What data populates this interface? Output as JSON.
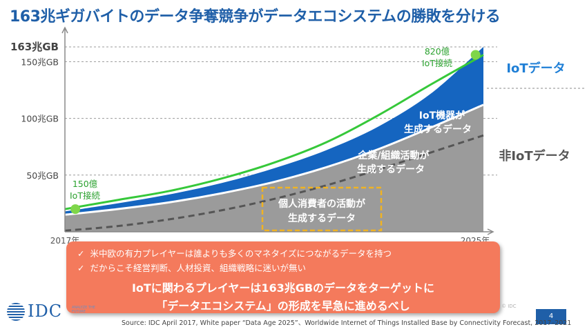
{
  "title": "163兆ギガバイトのデータ争奪競争がデータエコシステムの勝敗を分ける",
  "chart_data": {
    "type": "area",
    "x_start_label": "2017年",
    "x_end_label": "2025年",
    "x": [
      2017,
      2018,
      2019,
      2020,
      2021,
      2022,
      2023,
      2024,
      2025
    ],
    "xlim": [
      2017,
      2025
    ],
    "ylim": [
      0,
      163
    ],
    "y_ticks": [
      {
        "value": 163,
        "label": "163兆GB"
      },
      {
        "value": 150,
        "label": "150兆GB"
      },
      {
        "value": 100,
        "label": "100兆GB"
      },
      {
        "value": 50,
        "label": "50兆GB"
      }
    ],
    "series": [
      {
        "name": "非IoTデータ",
        "values": [
          15,
          20,
          26,
          34,
          44,
          57,
          73,
          92,
          112
        ]
      },
      {
        "name": "IoTデータ",
        "values": [
          18,
          25,
          33,
          43,
          56,
          72,
          93,
          122,
          163
        ]
      }
    ],
    "boundary_line": {
      "values": [
        1,
        5,
        11,
        19,
        29,
        41,
        55,
        70,
        85
      ]
    },
    "device_line": {
      "values": [
        20,
        28,
        36,
        47,
        61,
        79,
        103,
        130,
        156
      ]
    },
    "points": [
      {
        "x": 2017.2,
        "y": 20,
        "label_line1": "150億",
        "label_line2": "IoT接続"
      },
      {
        "x": 2024.85,
        "y": 156,
        "label_line1": "820億",
        "label_line2": "IoT接続"
      }
    ],
    "area_labels": {
      "iot_device_1": "IoT機器が",
      "iot_device_2": "生成するデータ",
      "enterprise_1": "企業/組織活動が",
      "enterprise_2": "生成するデータ",
      "consumer_1": "個人消費者の活動が",
      "consumer_2": "生成するデータ"
    },
    "legend_iot": "IoTデータ",
    "legend_non_iot": "非IoTデータ",
    "colors": {
      "non_iot": "#9b9b9b",
      "iot": "#1565c0",
      "device_line": "#36c83a",
      "dashed": "#555555",
      "highlight_box": "#f0b323",
      "legend_iot": "#1f7fd6",
      "legend_non_iot": "#555555"
    }
  },
  "callout": {
    "bullet_1": "米中欧の有力プレイヤーは誰よりも多くのマネタイズにつながるデータを持つ",
    "bullet_2": "だからこそ経営判断、人材投資、組織戦略に迷いが無い",
    "check_mark": "✓",
    "message_1": "IoTに関わるプレイヤーは163兆GBのデータをターゲットに",
    "message_2": "「データエコシステム」の形成を早急に進めるべし",
    "color": "#f47a5c"
  },
  "footer": {
    "logo_text": "IDC",
    "logo_tagline": "ANALYZE THE FUTURE",
    "small_mark": "© IDC",
    "page_number": "4",
    "source": "Source: IDC April 2017, White paper “Data Age 2025”、Worldwide Internet of Things Installed Base by Connectivity Forecast, 2017–2021"
  }
}
